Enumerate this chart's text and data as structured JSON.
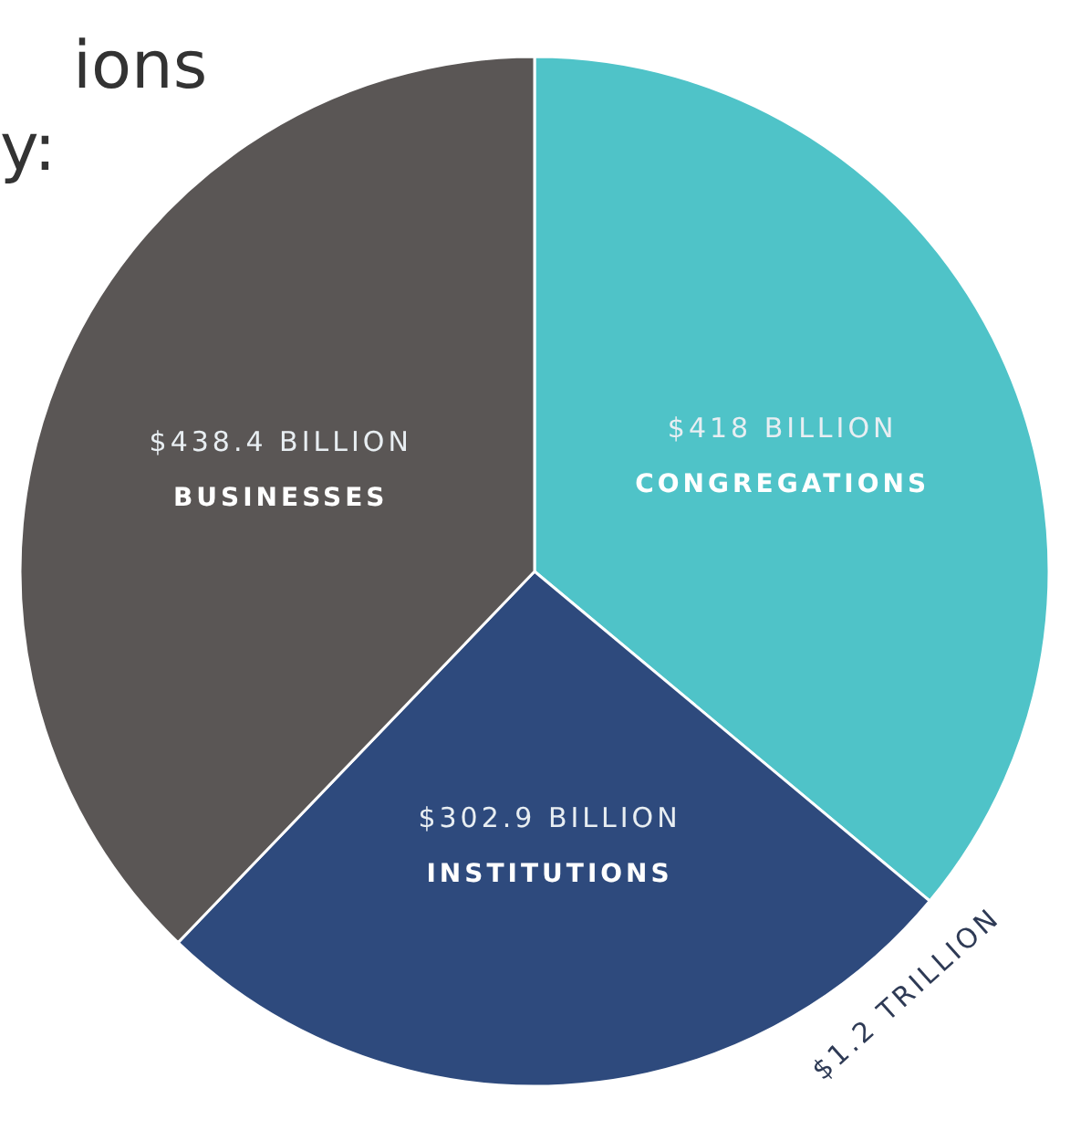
{
  "chart_data": {
    "type": "pie",
    "title": "ions\ny:",
    "categories": [
      "CONGREGATIONS",
      "INSTITUTIONS",
      "BUSINESSES"
    ],
    "values": [
      418,
      302.9,
      438.4
    ],
    "colors": [
      "#4fc3c8",
      "#2e4a7d",
      "#5a5655"
    ],
    "value_labels": [
      "$418 BILLION",
      "$302.9 BILLION",
      "$438.4 BILLION"
    ],
    "annotations": [
      "$1.2 TRILLION"
    ]
  }
}
